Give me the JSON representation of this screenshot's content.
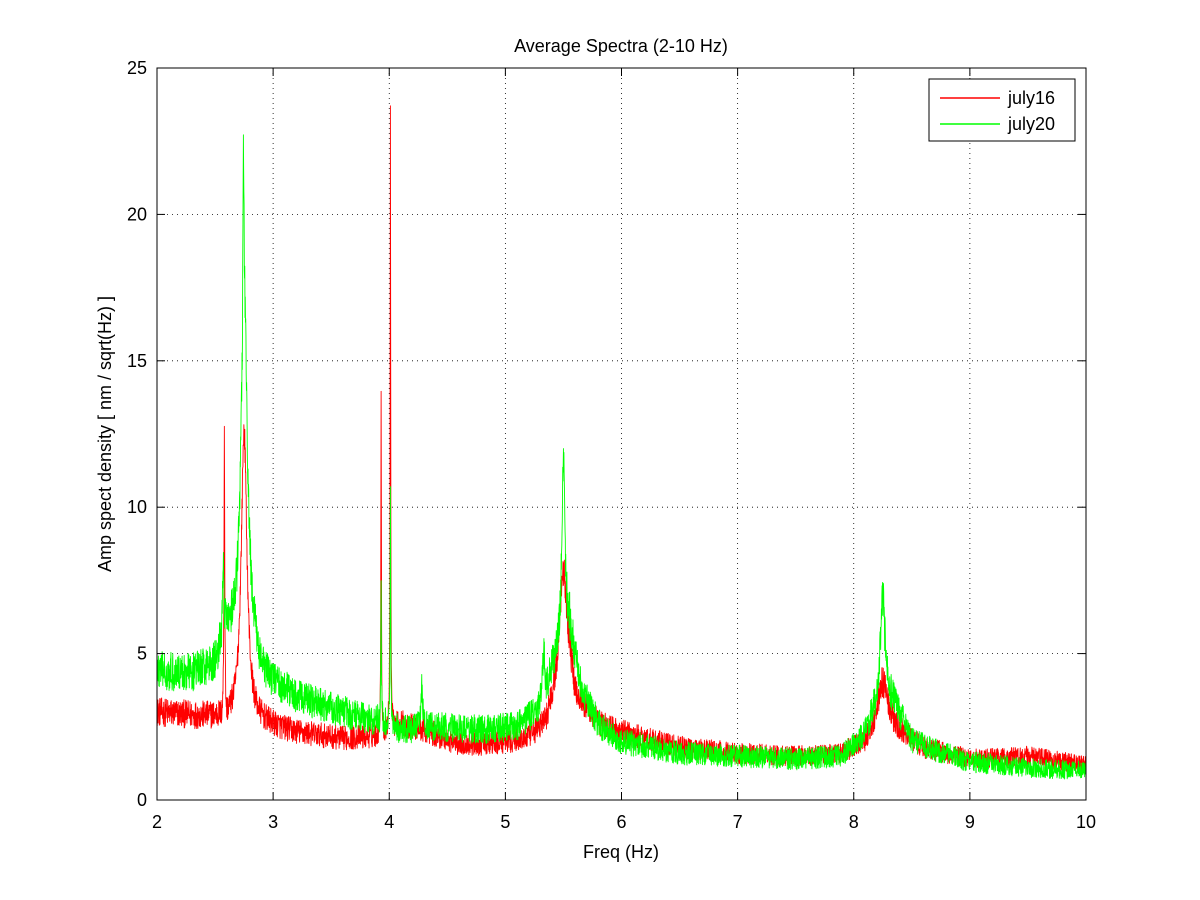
{
  "chart_data": {
    "type": "line",
    "title": "Average Spectra (2-10 Hz)",
    "xlabel": "Freq (Hz)",
    "ylabel": "Amp spect density [ nm / sqrt(Hz) ]",
    "xlim": [
      2,
      10
    ],
    "ylim": [
      0,
      25
    ],
    "x_ticks": [
      2,
      3,
      4,
      5,
      6,
      7,
      8,
      9,
      10
    ],
    "y_ticks": [
      0,
      5,
      10,
      15,
      20,
      25
    ],
    "grid": true,
    "legend_position": "top-right",
    "series": [
      {
        "name": "july16",
        "color": "#ff0000",
        "baseline": [
          [
            2.0,
            3.0
          ],
          [
            2.5,
            2.8
          ],
          [
            2.9,
            2.6
          ],
          [
            3.2,
            2.3
          ],
          [
            3.6,
            2.1
          ],
          [
            3.9,
            2.2
          ],
          [
            4.1,
            2.6
          ],
          [
            4.3,
            2.4
          ],
          [
            4.6,
            1.9
          ],
          [
            4.9,
            1.9
          ],
          [
            5.2,
            2.1
          ],
          [
            5.35,
            2.6
          ],
          [
            5.45,
            4.0
          ],
          [
            5.5,
            6.0
          ],
          [
            5.6,
            3.5
          ],
          [
            5.8,
            2.6
          ],
          [
            6.0,
            2.3
          ],
          [
            6.5,
            1.8
          ],
          [
            7.0,
            1.6
          ],
          [
            7.5,
            1.5
          ],
          [
            7.9,
            1.6
          ],
          [
            8.1,
            2.0
          ],
          [
            8.2,
            2.8
          ],
          [
            8.25,
            3.8
          ],
          [
            8.35,
            2.5
          ],
          [
            8.6,
            1.8
          ],
          [
            9.0,
            1.4
          ],
          [
            9.5,
            1.5
          ],
          [
            10.0,
            1.2
          ]
        ],
        "peaks": [
          {
            "x": 2.58,
            "y": 12.8,
            "width": 0.004
          },
          {
            "x": 2.75,
            "y": 12.6,
            "width": 0.03
          },
          {
            "x": 3.93,
            "y": 13.6,
            "width": 0.003
          },
          {
            "x": 4.01,
            "y": 23.3,
            "width": 0.003
          },
          {
            "x": 5.5,
            "y": 8.0,
            "width": 0.03
          },
          {
            "x": 8.25,
            "y": 4.0,
            "width": 0.03
          }
        ],
        "noise_amplitude": 0.45
      },
      {
        "name": "july20",
        "color": "#00ff00",
        "baseline": [
          [
            2.0,
            4.4
          ],
          [
            2.3,
            4.3
          ],
          [
            2.5,
            4.6
          ],
          [
            2.6,
            6.0
          ],
          [
            2.65,
            5.5
          ],
          [
            2.8,
            5.5
          ],
          [
            2.9,
            4.2
          ],
          [
            3.2,
            3.5
          ],
          [
            3.6,
            3.0
          ],
          [
            3.9,
            2.7
          ],
          [
            4.1,
            2.4
          ],
          [
            4.4,
            2.5
          ],
          [
            4.8,
            2.4
          ],
          [
            5.1,
            2.5
          ],
          [
            5.3,
            3.2
          ],
          [
            5.45,
            5.0
          ],
          [
            5.55,
            6.0
          ],
          [
            5.65,
            3.8
          ],
          [
            5.8,
            2.6
          ],
          [
            6.0,
            2.0
          ],
          [
            6.5,
            1.6
          ],
          [
            7.0,
            1.5
          ],
          [
            7.5,
            1.4
          ],
          [
            7.9,
            1.5
          ],
          [
            8.1,
            2.3
          ],
          [
            8.2,
            3.5
          ],
          [
            8.25,
            5.8
          ],
          [
            8.3,
            3.8
          ],
          [
            8.5,
            2.0
          ],
          [
            9.0,
            1.3
          ],
          [
            9.5,
            1.1
          ],
          [
            10.0,
            1.0
          ]
        ],
        "peaks": [
          {
            "x": 2.57,
            "y": 8.2,
            "width": 0.006
          },
          {
            "x": 2.745,
            "y": 22.2,
            "width": 0.012
          },
          {
            "x": 2.75,
            "y": 18.0,
            "width": 0.03
          },
          {
            "x": 3.93,
            "y": 7.0,
            "width": 0.003
          },
          {
            "x": 4.01,
            "y": 11.0,
            "width": 0.003
          },
          {
            "x": 4.28,
            "y": 3.8,
            "width": 0.01
          },
          {
            "x": 5.33,
            "y": 5.3,
            "width": 0.01
          },
          {
            "x": 5.5,
            "y": 12.0,
            "width": 0.015
          },
          {
            "x": 8.25,
            "y": 6.9,
            "width": 0.012
          }
        ],
        "noise_amplitude": 0.5
      }
    ]
  }
}
